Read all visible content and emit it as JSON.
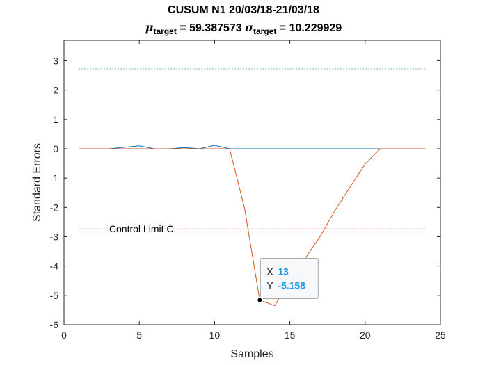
{
  "title": {
    "line1": "CUSUM N1 20/03/18-21/03/18",
    "mu_symbol": "μ",
    "sigma_symbol": "σ",
    "target_sub": "target",
    "mu_value": " = 59.387573 ",
    "sigma_value": " = 10.229929"
  },
  "chart_data": {
    "type": "line",
    "xlabel": "Samples",
    "ylabel": "Standard Errors",
    "xlim": [
      0,
      25
    ],
    "ylim": [
      -6,
      3.7
    ],
    "xticks": [
      0,
      5,
      10,
      15,
      20,
      25
    ],
    "yticks": [
      -6,
      -5,
      -4,
      -3,
      -2,
      -1,
      0,
      1,
      2,
      3
    ],
    "grid": false,
    "colors": {
      "upper": "#0072bd",
      "lower": "#d95319"
    },
    "series": [
      {
        "x": [
          1,
          2,
          3,
          4,
          5,
          6,
          7,
          8,
          9,
          10,
          11,
          12,
          13,
          14,
          15,
          16,
          17,
          18,
          19,
          20,
          21,
          22,
          23,
          24
        ],
        "values": [
          0,
          0,
          0,
          0.05,
          0.1,
          0,
          0,
          0.04,
          0,
          0.12,
          0,
          0,
          0,
          0,
          0,
          0,
          0,
          0,
          0,
          0,
          0,
          0,
          0,
          0
        ]
      },
      {
        "x": [
          1,
          2,
          3,
          4,
          5,
          6,
          7,
          8,
          9,
          10,
          11,
          12,
          13,
          14,
          15,
          16,
          17,
          18,
          19,
          20,
          21,
          22,
          23,
          24
        ],
        "values": [
          0,
          0,
          0,
          0,
          0,
          0,
          0,
          0,
          0,
          0,
          0,
          -2.05,
          -5.158,
          -5.35,
          -4.45,
          -3.75,
          -3.0,
          -2.1,
          -1.3,
          -0.52,
          0,
          0,
          0,
          0
        ]
      }
    ],
    "control_limits": {
      "upper": 2.73,
      "lower": -2.73
    },
    "annotation": {
      "text": "Control Limit C",
      "x": 3.0,
      "y": -2.73
    },
    "datatip": {
      "x_key": "X",
      "y_key": "Y",
      "x_value": "13",
      "y_value": "-5.158",
      "x": 13,
      "y": -5.158
    }
  }
}
